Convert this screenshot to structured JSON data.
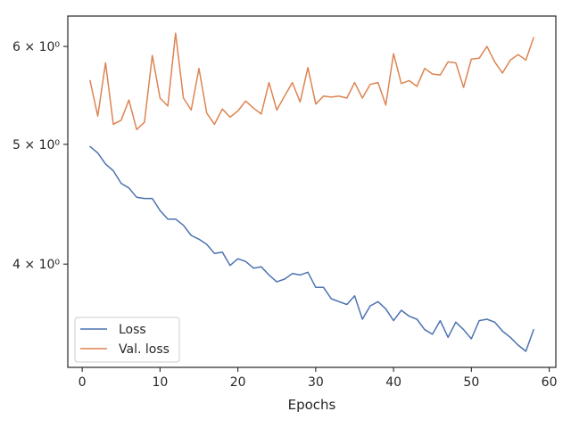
{
  "chart_data": {
    "type": "line",
    "title": "",
    "xlabel": "Epochs",
    "ylabel": "",
    "xlim": [
      -1.85,
      60.85
    ],
    "ylim": [
      3.3,
      6.35
    ],
    "yscale": "log",
    "grid": false,
    "legend_position": "lower-left",
    "x_ticks": [
      0,
      10,
      20,
      30,
      40,
      50,
      60
    ],
    "x_tick_labels": [
      "0",
      "10",
      "20",
      "30",
      "40",
      "50",
      "60"
    ],
    "y_ticks": [
      4,
      5,
      6
    ],
    "y_tick_labels": [
      "4 × 10⁰",
      "5 × 10⁰",
      "6 × 10⁰"
    ],
    "x": [
      1,
      2,
      3,
      4,
      5,
      6,
      7,
      8,
      9,
      10,
      11,
      12,
      13,
      14,
      15,
      16,
      17,
      18,
      19,
      20,
      21,
      22,
      23,
      24,
      25,
      26,
      27,
      28,
      29,
      30,
      31,
      32,
      33,
      34,
      35,
      36,
      37,
      38,
      39,
      40,
      41,
      42,
      43,
      44,
      45,
      46,
      47,
      48,
      49,
      50,
      51,
      52,
      53,
      54,
      55,
      56,
      57,
      58
    ],
    "series": [
      {
        "name": "Loss",
        "color": "#4c72b0",
        "values": [
          4.98,
          4.92,
          4.82,
          4.76,
          4.65,
          4.61,
          4.53,
          4.52,
          4.52,
          4.42,
          4.35,
          4.35,
          4.3,
          4.22,
          4.19,
          4.15,
          4.08,
          4.09,
          3.99,
          4.04,
          4.02,
          3.97,
          3.98,
          3.92,
          3.87,
          3.89,
          3.93,
          3.92,
          3.94,
          3.83,
          3.83,
          3.75,
          3.73,
          3.71,
          3.77,
          3.61,
          3.7,
          3.73,
          3.68,
          3.6,
          3.67,
          3.63,
          3.61,
          3.54,
          3.51,
          3.6,
          3.49,
          3.59,
          3.54,
          3.48,
          3.6,
          3.61,
          3.59,
          3.53,
          3.49,
          3.44,
          3.4,
          3.54
        ]
      },
      {
        "name": "Val. loss",
        "color": "#dd8452",
        "values": [
          5.63,
          5.27,
          5.82,
          5.19,
          5.23,
          5.43,
          5.14,
          5.21,
          5.9,
          5.45,
          5.37,
          6.15,
          5.45,
          5.33,
          5.76,
          5.3,
          5.19,
          5.34,
          5.26,
          5.32,
          5.42,
          5.35,
          5.29,
          5.61,
          5.33,
          5.47,
          5.61,
          5.41,
          5.77,
          5.39,
          5.47,
          5.46,
          5.47,
          5.45,
          5.61,
          5.45,
          5.59,
          5.61,
          5.38,
          5.92,
          5.6,
          5.63,
          5.57,
          5.76,
          5.7,
          5.69,
          5.83,
          5.82,
          5.56,
          5.86,
          5.87,
          6.0,
          5.83,
          5.71,
          5.85,
          5.91,
          5.85,
          6.1
        ]
      }
    ]
  }
}
